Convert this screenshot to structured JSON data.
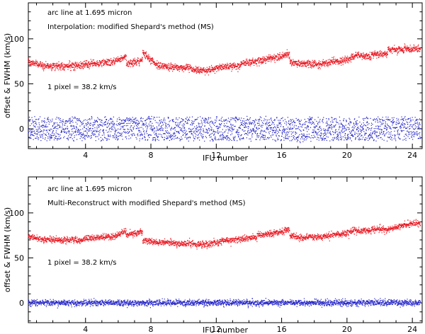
{
  "chart_data": [
    {
      "type": "scatter",
      "title": "",
      "xlabel": "IFU number",
      "ylabel": "offset & FWHM (km/s)",
      "xlim": [
        0.5,
        24.6
      ],
      "ylim": [
        -22,
        140
      ],
      "x_ticks": [
        4,
        8,
        12,
        16,
        20,
        24
      ],
      "x_minor_step": 1,
      "y_ticks": [
        0,
        50,
        100
      ],
      "y_minor_step": 10,
      "annotations": [
        "arc line at 1.695 micron",
        "Interpolation: modified Shepard's method (MS)",
        "1 pixel =  38.2 km/s"
      ],
      "series": [
        {
          "name": "FWHM",
          "color": "#e8141e",
          "ifu_levels": [
            [
              1,
              72
            ],
            [
              2,
              70
            ],
            [
              3,
              70
            ],
            [
              4,
              71
            ],
            [
              5,
              73
            ],
            [
              6,
              77
            ],
            [
              7,
              74
            ],
            [
              8,
              77
            ],
            [
              9,
              69
            ],
            [
              10,
              68
            ],
            [
              11,
              65
            ],
            [
              12,
              67
            ],
            [
              13,
              70
            ],
            [
              14,
              74
            ],
            [
              15,
              77
            ],
            [
              16,
              81
            ],
            [
              17,
              73
            ],
            [
              18,
              72
            ],
            [
              19,
              74
            ],
            [
              20,
              77
            ],
            [
              21,
              81
            ],
            [
              22,
              83
            ],
            [
              23,
              88
            ],
            [
              24,
              89
            ]
          ],
          "ifu_trend": [
            [
              1,
              -2
            ],
            [
              2,
              0
            ],
            [
              3,
              1
            ],
            [
              4,
              2
            ],
            [
              5,
              1
            ],
            [
              6,
              4
            ],
            [
              7,
              2
            ],
            [
              8,
              -8
            ],
            [
              9,
              -1
            ],
            [
              10,
              0
            ],
            [
              11,
              0
            ],
            [
              12,
              2
            ],
            [
              13,
              0
            ],
            [
              14,
              1
            ],
            [
              15,
              1
            ],
            [
              16,
              3
            ],
            [
              17,
              -1
            ],
            [
              18,
              0
            ],
            [
              19,
              2
            ],
            [
              20,
              3
            ],
            [
              21,
              -1
            ],
            [
              22,
              0
            ],
            [
              23,
              0
            ],
            [
              24,
              0
            ]
          ],
          "scatter": 3.5
        },
        {
          "name": "offset",
          "color": "#2424c8",
          "ifu_levels": [
            [
              1,
              0
            ],
            [
              2,
              0
            ],
            [
              3,
              0
            ],
            [
              4,
              0
            ],
            [
              5,
              0
            ],
            [
              6,
              0
            ],
            [
              7,
              0
            ],
            [
              8,
              0
            ],
            [
              9,
              0
            ],
            [
              10,
              0
            ],
            [
              11,
              0
            ],
            [
              12,
              0
            ],
            [
              13,
              0
            ],
            [
              14,
              0
            ],
            [
              15,
              0
            ],
            [
              16,
              0
            ],
            [
              17,
              -2
            ],
            [
              18,
              0
            ],
            [
              19,
              0
            ],
            [
              20,
              0
            ],
            [
              21,
              0
            ],
            [
              22,
              0
            ],
            [
              23,
              0
            ],
            [
              24,
              0
            ]
          ],
          "ifu_trend": [
            [
              1,
              0
            ],
            [
              2,
              0
            ],
            [
              3,
              0
            ],
            [
              4,
              0
            ],
            [
              5,
              0
            ],
            [
              6,
              0
            ],
            [
              7,
              0
            ],
            [
              8,
              0
            ],
            [
              9,
              0
            ],
            [
              10,
              0
            ],
            [
              11,
              0
            ],
            [
              12,
              0
            ],
            [
              13,
              0
            ],
            [
              14,
              0
            ],
            [
              15,
              0
            ],
            [
              16,
              0
            ],
            [
              17,
              0
            ],
            [
              18,
              0
            ],
            [
              19,
              0
            ],
            [
              20,
              0
            ],
            [
              21,
              0
            ],
            [
              22,
              0
            ],
            [
              23,
              0
            ],
            [
              24,
              0
            ]
          ],
          "scatter": 15
        }
      ]
    },
    {
      "type": "scatter",
      "title": "",
      "xlabel": "IFU number",
      "ylabel": "offset & FWHM (km/s)",
      "xlim": [
        0.5,
        24.6
      ],
      "ylim": [
        -22,
        140
      ],
      "x_ticks": [
        4,
        8,
        12,
        16,
        20,
        24
      ],
      "x_minor_step": 1,
      "y_ticks": [
        0,
        50,
        100
      ],
      "y_minor_step": 10,
      "annotations": [
        "arc line at 1.695 micron",
        "Multi-Reconstruct with modified Shepard's method (MS)",
        "1 pixel =  38.2 km/s"
      ],
      "series": [
        {
          "name": "FWHM",
          "color": "#e8141e",
          "ifu_levels": [
            [
              1,
              72
            ],
            [
              2,
              70
            ],
            [
              3,
              70
            ],
            [
              4,
              71
            ],
            [
              5,
              73
            ],
            [
              6,
              76
            ],
            [
              7,
              77
            ],
            [
              8,
              68
            ],
            [
              9,
              67
            ],
            [
              10,
              66
            ],
            [
              11,
              65
            ],
            [
              12,
              67
            ],
            [
              13,
              70
            ],
            [
              14,
              72
            ],
            [
              15,
              76
            ],
            [
              16,
              79
            ],
            [
              17,
              73
            ],
            [
              18,
              73
            ],
            [
              19,
              75
            ],
            [
              20,
              78
            ],
            [
              21,
              80
            ],
            [
              22,
              82
            ],
            [
              23,
              84
            ],
            [
              24,
              88
            ]
          ],
          "ifu_trend": [
            [
              1,
              -2
            ],
            [
              2,
              0
            ],
            [
              3,
              1
            ],
            [
              4,
              2
            ],
            [
              5,
              1
            ],
            [
              6,
              4
            ],
            [
              7,
              2
            ],
            [
              8,
              -1
            ],
            [
              9,
              0
            ],
            [
              10,
              0
            ],
            [
              11,
              0
            ],
            [
              12,
              2
            ],
            [
              13,
              1
            ],
            [
              14,
              1
            ],
            [
              15,
              1
            ],
            [
              16,
              2
            ],
            [
              17,
              -1
            ],
            [
              18,
              0
            ],
            [
              19,
              2
            ],
            [
              20,
              3
            ],
            [
              21,
              0
            ],
            [
              22,
              0
            ],
            [
              23,
              2
            ],
            [
              24,
              1
            ]
          ],
          "scatter": 3
        },
        {
          "name": "offset",
          "color": "#2424c8",
          "ifu_levels": [
            [
              1,
              0
            ],
            [
              2,
              0
            ],
            [
              3,
              0
            ],
            [
              4,
              0
            ],
            [
              5,
              0
            ],
            [
              6,
              0
            ],
            [
              7,
              0
            ],
            [
              8,
              0
            ],
            [
              9,
              0
            ],
            [
              10,
              0
            ],
            [
              11,
              0
            ],
            [
              12,
              0
            ],
            [
              13,
              0
            ],
            [
              14,
              0
            ],
            [
              15,
              0
            ],
            [
              16,
              0
            ],
            [
              17,
              0
            ],
            [
              18,
              0
            ],
            [
              19,
              0
            ],
            [
              20,
              0
            ],
            [
              21,
              0
            ],
            [
              22,
              0
            ],
            [
              23,
              0
            ],
            [
              24,
              0
            ]
          ],
          "ifu_trend": [
            [
              1,
              0
            ],
            [
              2,
              0
            ],
            [
              3,
              0
            ],
            [
              4,
              0
            ],
            [
              5,
              0
            ],
            [
              6,
              0
            ],
            [
              7,
              0
            ],
            [
              8,
              0
            ],
            [
              9,
              0
            ],
            [
              10,
              0
            ],
            [
              11,
              0
            ],
            [
              12,
              0
            ],
            [
              13,
              0
            ],
            [
              14,
              0
            ],
            [
              15,
              0
            ],
            [
              16,
              0
            ],
            [
              17,
              0
            ],
            [
              18,
              0
            ],
            [
              19,
              0
            ],
            [
              20,
              0
            ],
            [
              21,
              0
            ],
            [
              22,
              0
            ],
            [
              23,
              0
            ],
            [
              24,
              0
            ]
          ],
          "scatter": 3
        }
      ]
    }
  ]
}
